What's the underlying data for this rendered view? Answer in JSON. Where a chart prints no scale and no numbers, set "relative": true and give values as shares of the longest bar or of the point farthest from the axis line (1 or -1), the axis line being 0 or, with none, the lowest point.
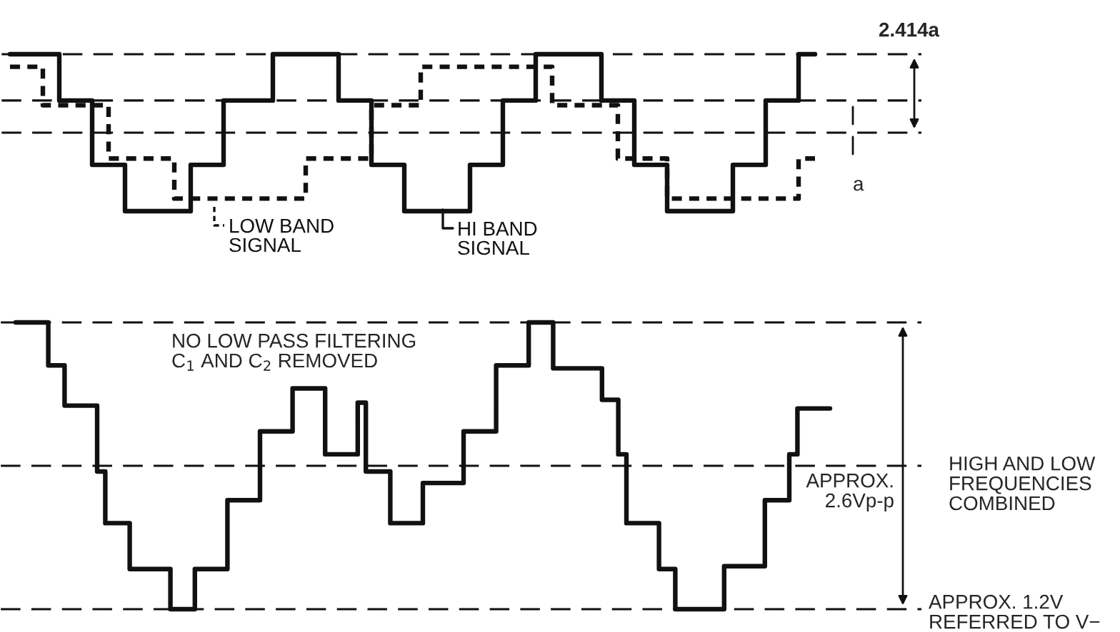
{
  "chart_data": [
    {
      "type": "step",
      "relative": true,
      "categories": [
        null,
        null,
        null,
        null,
        null,
        null,
        null,
        null,
        null,
        null,
        null,
        null,
        null,
        null,
        null,
        null,
        null,
        null,
        null,
        null,
        null,
        null,
        null,
        null,
        null,
        null,
        null,
        null,
        null,
        null,
        null,
        null,
        null,
        null,
        null,
        null,
        null,
        null,
        null,
        null,
        null,
        null,
        null,
        null,
        null,
        null,
        null,
        null,
        null,
        null
      ],
      "series": [
        {
          "name": "HI BAND\nSIGNAL",
          "color": "#111111",
          "line_style": "solid",
          "values": [
            1,
            1,
            1,
            0.41,
            0.41,
            -0.41,
            -0.41,
            -1,
            -1,
            -1,
            -1,
            -0.41,
            -0.41,
            0.41,
            0.41,
            0.41,
            1,
            1,
            1,
            1,
            0.41,
            0.41,
            -0.41,
            -0.41,
            -1,
            -1,
            -1,
            -1,
            -0.41,
            -0.41,
            0.41,
            0.41,
            1,
            1,
            1,
            1,
            0.41,
            0.41,
            -0.41,
            -0.41,
            -1,
            -1,
            -1,
            -1,
            -0.41,
            -0.41,
            0.41,
            0.41,
            1,
            1
          ]
        },
        {
          "name": "LOW BAND\nSIGNAL",
          "color": "#111111",
          "line_style": "dotted",
          "values": [
            0.84,
            0.84,
            0.35,
            0.35,
            0.35,
            0.35,
            -0.33,
            -0.33,
            -0.33,
            -0.33,
            -0.84,
            -0.84,
            -0.84,
            -0.84,
            -0.84,
            -0.84,
            -0.84,
            -0.84,
            -0.33,
            -0.33,
            -0.33,
            -0.33,
            0.35,
            0.35,
            0.35,
            0.84,
            0.84,
            0.84,
            0.84,
            0.84,
            0.84,
            0.84,
            0.84,
            0.35,
            0.35,
            0.35,
            0.35,
            -0.33,
            -0.33,
            -0.33,
            -0.84,
            -0.84,
            -0.84,
            -0.84,
            -0.84,
            -0.84,
            -0.84,
            -0.84,
            -0.33,
            -0.33
          ]
        }
      ],
      "ref_lines": [
        {
          "axis": "y",
          "value": 0,
          "line_style": "dashed"
        },
        {
          "axis": "y",
          "value": 1,
          "line_style": "dashed"
        },
        {
          "axis": "y",
          "value": 0.41,
          "line_style": "dashed"
        }
      ],
      "annotations": [
        "2.414a",
        "a"
      ],
      "legend": "bottom"
    },
    {
      "type": "step",
      "relative": true,
      "categories": [
        null,
        null,
        null,
        null,
        null,
        null,
        null,
        null,
        null,
        null,
        null,
        null,
        null,
        null,
        null,
        null,
        null,
        null,
        null,
        null,
        null,
        null,
        null,
        null,
        null,
        null,
        null,
        null,
        null,
        null,
        null,
        null,
        null,
        null,
        null,
        null,
        null,
        null,
        null,
        null,
        null,
        null,
        null,
        null,
        null,
        null,
        null,
        null,
        null,
        null,
        null,
        null,
        null,
        null,
        null,
        null,
        null,
        null,
        null,
        null,
        null,
        null,
        null,
        null,
        null,
        null,
        null,
        null,
        null,
        null,
        null,
        null,
        null,
        null,
        null,
        null,
        null,
        null,
        null,
        null,
        null,
        null,
        null,
        null,
        null,
        null,
        null,
        null,
        null,
        null,
        null,
        null,
        null,
        null,
        null,
        null,
        null,
        null,
        null,
        null,
        null
      ],
      "series": [
        {
          "color": "#111111",
          "line_style": "solid",
          "values": [
            1,
            1,
            1,
            1,
            0.85,
            0.85,
            0.71,
            0.71,
            0.71,
            0.71,
            0.48,
            0.3,
            0.3,
            0.3,
            0.14,
            0.14,
            0.14,
            0.14,
            0.14,
            0,
            0,
            0,
            0.14,
            0.14,
            0.14,
            0.14,
            0.38,
            0.38,
            0.38,
            0.38,
            0.62,
            0.62,
            0.62,
            0.62,
            0.77,
            0.77,
            0.77,
            0.77,
            0.54,
            0.54,
            0.54,
            0.54,
            0.72,
            0.48,
            0.48,
            0.48,
            0.3,
            0.3,
            0.3,
            0.3,
            0.44,
            0.44,
            0.44,
            0.44,
            0.44,
            0.62,
            0.62,
            0.62,
            0.62,
            0.85,
            0.85,
            0.85,
            0.85,
            1,
            1,
            1,
            0.84,
            0.84,
            0.84,
            0.84,
            0.84,
            0.84,
            0.73,
            0.73,
            0.54,
            0.3,
            0.3,
            0.3,
            0.3,
            0.14,
            0.14,
            0,
            0,
            0,
            0,
            0,
            0,
            0.15,
            0.15,
            0.15,
            0.15,
            0.15,
            0.38,
            0.38,
            0.38,
            0.54,
            0.7,
            0.7,
            0.7,
            0.7,
            0.7
          ]
        }
      ],
      "ref_lines": [
        {
          "axis": "y",
          "value": 1,
          "line_style": "dashed"
        },
        {
          "axis": "y",
          "value": 0.5,
          "line_style": "dashed"
        },
        {
          "axis": "y",
          "value": 0,
          "line_style": "dashed"
        }
      ],
      "annotations": [
        "NO LOW PASS FILTERING\nC$_{1}$ AND C$_{2}$ REMOVED",
        "APPROX.\n2.6Vp-p",
        "HIGH AND LOW\nFREQUENCIES\nCOMBINED",
        "APPROX. 1.2V\nREFERRED TO V−"
      ]
    }
  ]
}
